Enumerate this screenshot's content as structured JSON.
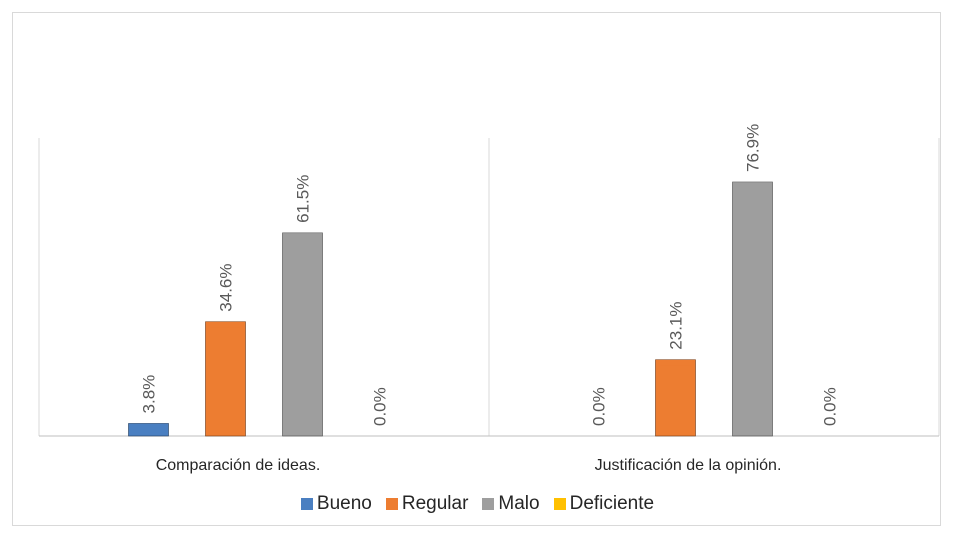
{
  "chart_data": {
    "type": "bar",
    "categories": [
      "Comparación de ideas.",
      "Justificación de la opinión."
    ],
    "series": [
      {
        "name": "Bueno",
        "values": [
          3.8,
          0.0
        ],
        "labels": [
          "3.8%",
          "0.0%"
        ],
        "color": "#4a7fc1"
      },
      {
        "name": "Regular",
        "values": [
          34.6,
          23.1
        ],
        "labels": [
          "34.6%",
          "23.1%"
        ],
        "color": "#ed7d31"
      },
      {
        "name": "Malo",
        "values": [
          61.5,
          76.9
        ],
        "labels": [
          "61.5%",
          "76.9%"
        ],
        "color": "#9e9e9e"
      },
      {
        "name": "Deficiente",
        "values": [
          0.0,
          0.0
        ],
        "labels": [
          "0.0%",
          "0.0%"
        ],
        "color": "#ffc000"
      }
    ],
    "ylim": [
      0,
      100
    ],
    "unit": "%",
    "legend": "bottom",
    "grid": false
  }
}
